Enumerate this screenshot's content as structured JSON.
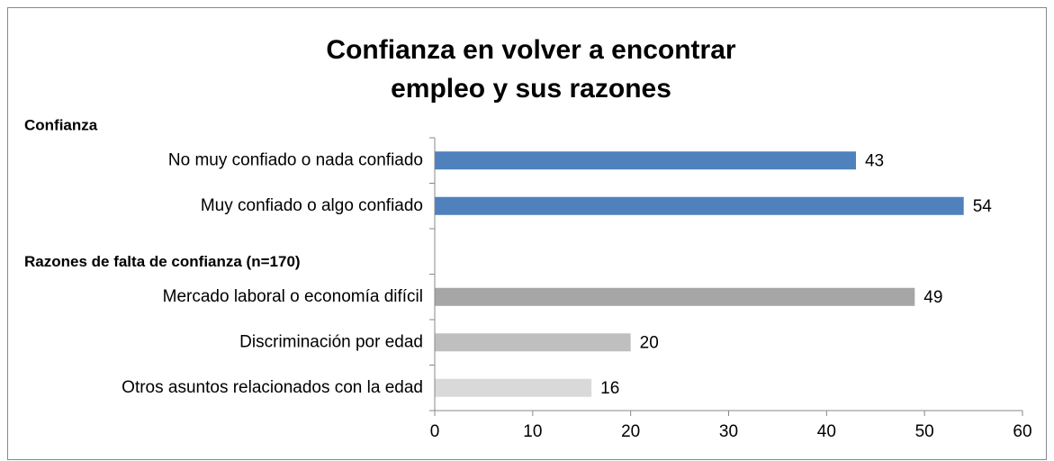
{
  "chart_data": {
    "type": "bar",
    "orientation": "horizontal",
    "title_lines": [
      "Confianza en volver a encontrar",
      "empleo y sus razones"
    ],
    "groups": [
      {
        "name": "Confianza",
        "categories": [
          "No muy confiado o nada confiado",
          "Muy confiado o algo confiado"
        ],
        "values": [
          43,
          54
        ],
        "colors": [
          "#4f81bd",
          "#4f81bd"
        ]
      },
      {
        "name": "Razones de falta de confianza (n=170)",
        "categories": [
          "Mercado laboral o economía difícil",
          "Discriminación por edad",
          "Otros asuntos relacionados con la edad"
        ],
        "values": [
          49,
          20,
          16
        ],
        "colors": [
          "#a6a6a6",
          "#bfbfbf",
          "#d9d9d9"
        ]
      }
    ],
    "xlim": [
      0,
      60
    ],
    "xticks": [
      0,
      10,
      20,
      30,
      40,
      50,
      60
    ]
  }
}
